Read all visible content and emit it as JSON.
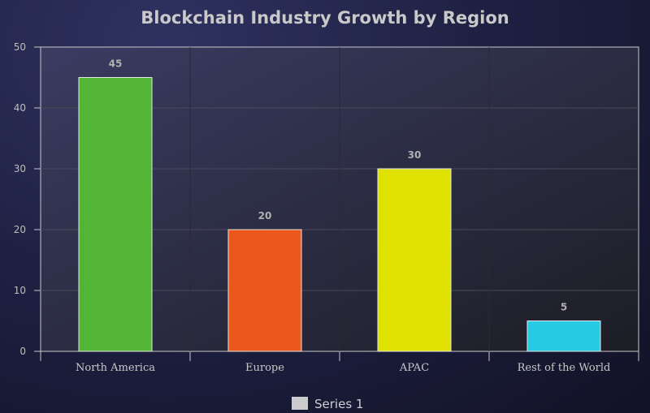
{
  "chart_data": {
    "type": "bar",
    "title": "Blockchain Industry Growth by Region",
    "xlabel": "",
    "ylabel": "",
    "categories": [
      "North America",
      "Europe",
      "APAC",
      "Rest of the World"
    ],
    "series": [
      {
        "name": "Series 1",
        "values": [
          45,
          20,
          30,
          5
        ]
      }
    ],
    "bar_colors": [
      "#53b535",
      "#ea581c",
      "#dfe100",
      "#27cae3"
    ],
    "ylim": [
      0,
      50
    ],
    "yticks": [
      0,
      10,
      20,
      30,
      40,
      50
    ],
    "grid": true,
    "legend_position": "bottom",
    "legend_swatch_color": "#cccccc"
  }
}
